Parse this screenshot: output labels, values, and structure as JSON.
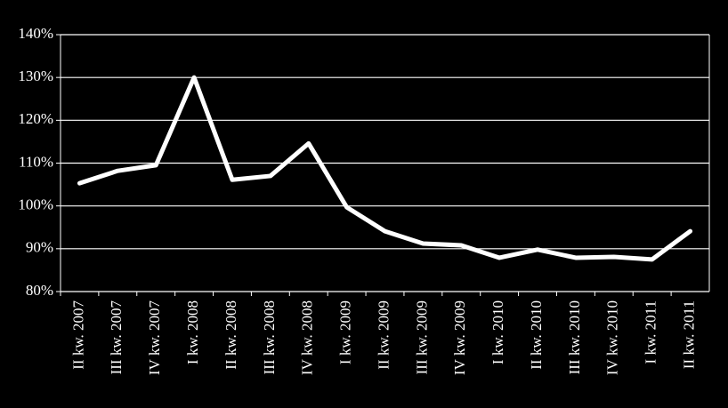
{
  "chart_data": {
    "type": "line",
    "categories": [
      "II kw. 2007",
      "III kw. 2007",
      "IV kw. 2007",
      "I kw. 2008",
      "II kw. 2008",
      "III kw. 2008",
      "IV kw. 2008",
      "I kw. 2009",
      "II kw. 2009",
      "III kw. 2009",
      "IV kw. 2009",
      "I kw. 2010",
      "II kw. 2010",
      "III kw. 2010",
      "IV kw. 2010",
      "I kw. 2011",
      "II kw. 2011"
    ],
    "values": [
      105.3,
      108.2,
      109.5,
      130,
      106.1,
      107,
      114.6,
      99.7,
      94.1,
      91.2,
      90.8,
      87.9,
      89.8,
      87.9,
      88.1,
      87.5,
      94.1
    ],
    "color": "#ffffff",
    "ylim": [
      80,
      140
    ],
    "yticks": [
      {
        "value": 80,
        "label": "80%"
      },
      {
        "value": 90,
        "label": "90%"
      },
      {
        "value": 100,
        "label": "100%"
      },
      {
        "value": 110,
        "label": "110%"
      },
      {
        "value": 120,
        "label": "120%"
      },
      {
        "value": 130,
        "label": "130%"
      },
      {
        "value": 140,
        "label": "140%"
      }
    ],
    "grid": true
  }
}
